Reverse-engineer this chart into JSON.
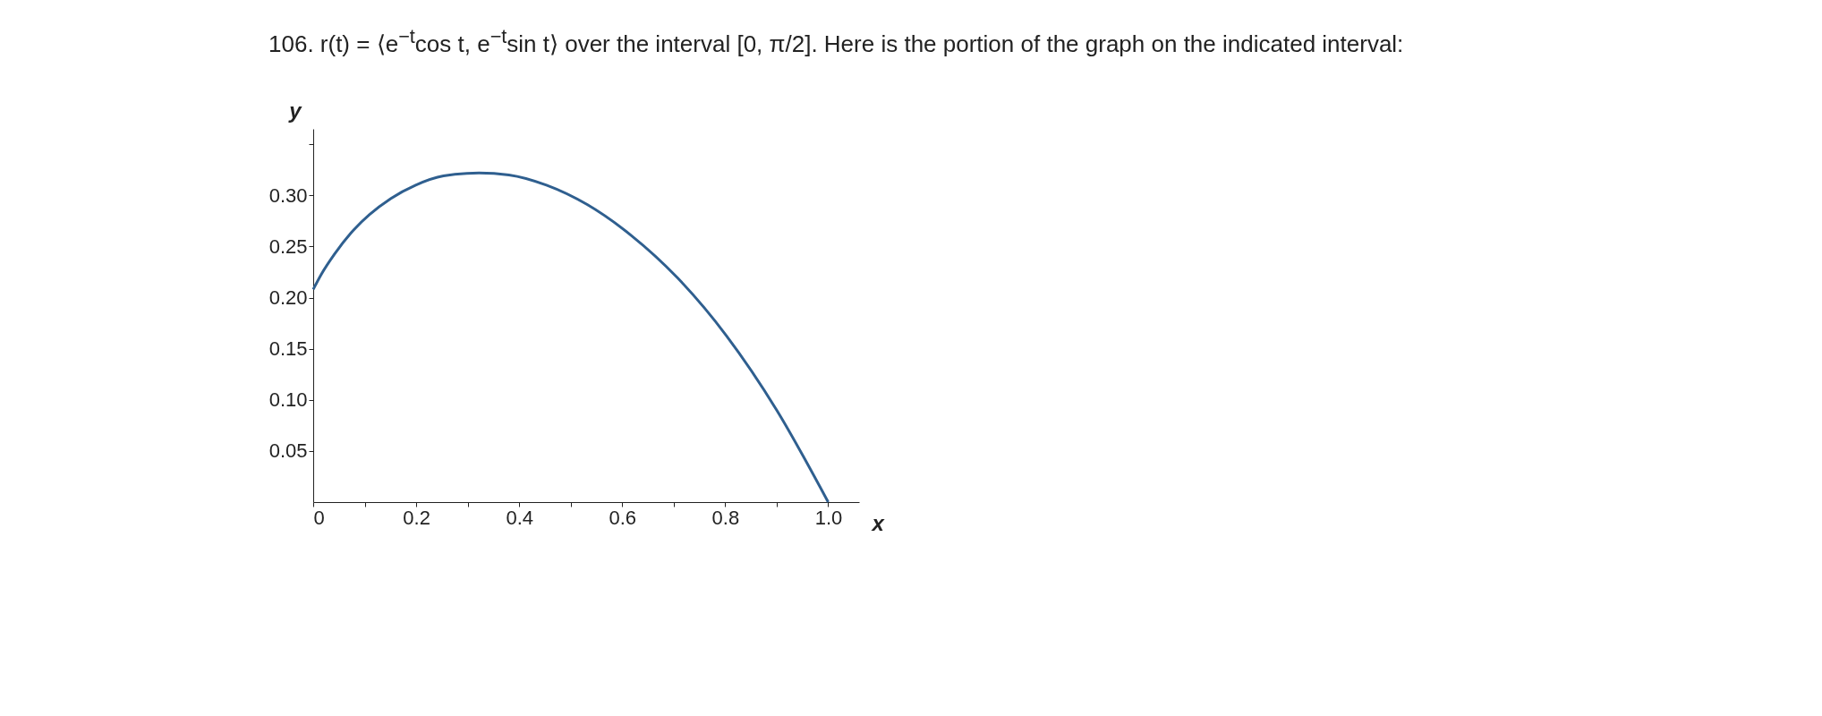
{
  "chart_data": {
    "type": "line",
    "title": "106. r(t) = ⟨e$^{−t}$cos t, e$^{−t}$sin t⟩ over the interval [0, π/2]. Here is the portion of the graph on the indicated interval:",
    "xlabel": "x",
    "ylabel": "y",
    "series": [
      {
        "color": "#2f5f8f",
        "x": [
          0,
          0.016,
          0.042,
          0.073,
          0.109,
          0.151,
          0.199,
          0.253,
          0.322,
          0.38,
          0.453,
          0.532,
          0.617,
          0.708,
          0.802,
          0.9,
          1.0
        ],
        "values": [
          0.208,
          0.223,
          0.243,
          0.263,
          0.281,
          0.297,
          0.31,
          0.319,
          0.322,
          0.32,
          0.31,
          0.291,
          0.261,
          0.219,
          0.163,
          0.09,
          0
        ]
      }
    ],
    "xlim": [
      0,
      1.06
    ],
    "ylim": [
      0,
      0.365
    ],
    "xticks": [
      {
        "value": 0,
        "label": "0"
      },
      {
        "value": 0.1,
        "label": null
      },
      0.2,
      {
        "value": 0.3,
        "label": null
      },
      0.4,
      {
        "value": 0.5,
        "label": null
      },
      0.6,
      {
        "value": 0.7,
        "label": null
      },
      0.8,
      {
        "value": 0.9,
        "label": null
      },
      {
        "value": 1.0,
        "label": "1.0"
      }
    ],
    "yticks": [
      0.05,
      {
        "value": 0.1,
        "label": "0.10"
      },
      0.15,
      {
        "value": 0.2,
        "label": "0.20"
      },
      0.25,
      {
        "value": 0.3,
        "label": "0.30"
      },
      {
        "value": 0.35,
        "label": null
      }
    ],
    "grid": false
  }
}
